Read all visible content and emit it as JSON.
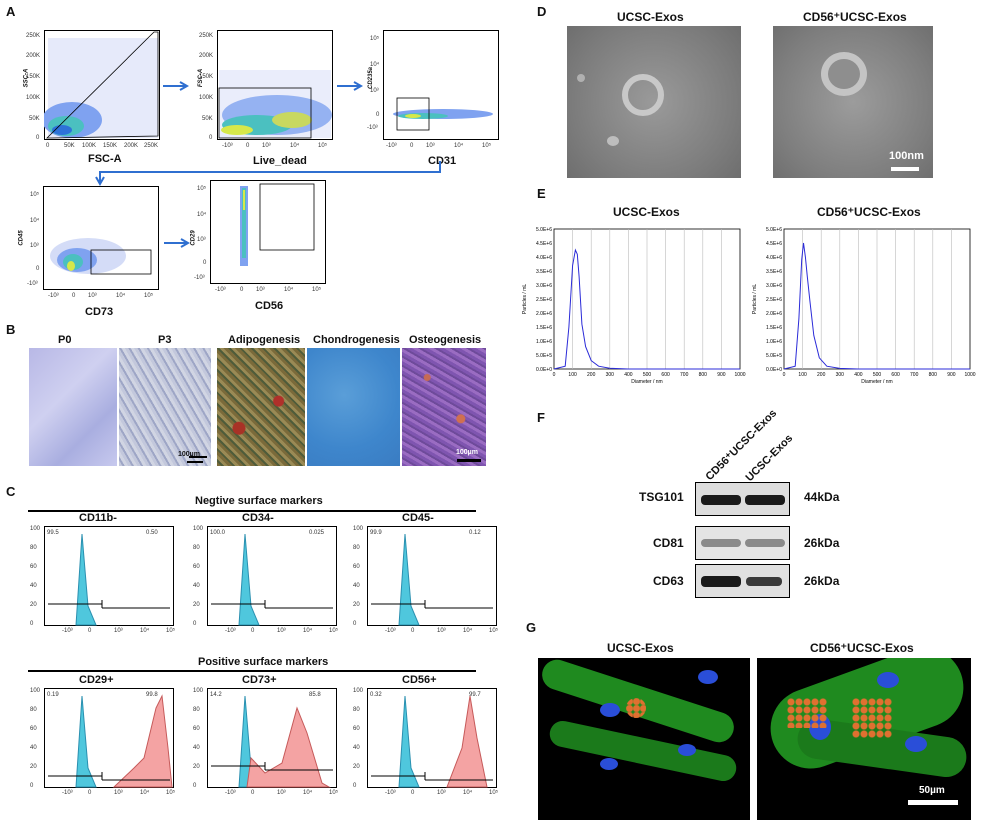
{
  "panels": {
    "A": "A",
    "B": "B",
    "C": "C",
    "D": "D",
    "E": "E",
    "F": "F",
    "G": "G"
  },
  "A": {
    "plots": [
      {
        "xlabel": "FSC-A",
        "ylabel": "SSC-A",
        "xticks": [
          "0",
          "50K",
          "100K",
          "150K",
          "200K",
          "250K"
        ],
        "yticks": [
          "250K",
          "200K",
          "150K",
          "100K",
          "50K",
          "0"
        ]
      },
      {
        "xlabel": "Live_dead",
        "ylabel": "FSC-A",
        "xticks": [
          "-10³",
          "0",
          "10³",
          "10⁴",
          "10⁵"
        ],
        "yticks": [
          "250K",
          "200K",
          "150K",
          "100K",
          "50K",
          "0"
        ]
      },
      {
        "xlabel": "CD31",
        "ylabel": "CD235a",
        "xticks": [
          "-10³",
          "0",
          "10³",
          "10⁴",
          "10⁵"
        ],
        "yticks": [
          "10⁵",
          "10⁴",
          "10³",
          "0",
          "-10³"
        ]
      },
      {
        "xlabel": "CD73",
        "ylabel": "CD45",
        "xticks": [
          "-10³",
          "0",
          "10³",
          "10⁴",
          "10⁵"
        ],
        "yticks": [
          "10⁵",
          "10⁴",
          "10³",
          "0",
          "-10³"
        ]
      },
      {
        "xlabel": "CD56",
        "ylabel": "CD29",
        "xticks": [
          "-10³",
          "0",
          "10³",
          "10⁴",
          "10⁵"
        ],
        "yticks": [
          "10⁵",
          "10⁴",
          "10³",
          "0",
          "-10³"
        ]
      }
    ]
  },
  "B": {
    "images": [
      "P0",
      "P3",
      "Adipogenesis",
      "Chondrogenesis",
      "Osteogenesis"
    ],
    "scale1": "100µm",
    "scale2": "100µm"
  },
  "C": {
    "negative_title": "Negtive surface markers",
    "positive_title": "Positive surface markers",
    "yticks": [
      "100",
      "80",
      "60",
      "40",
      "20",
      "0"
    ],
    "xticks": [
      "-10³",
      "0",
      "10³",
      "10⁴",
      "10⁵"
    ],
    "hists": [
      {
        "name": "CD11b-",
        "left": "99.5",
        "right": "0.50"
      },
      {
        "name": "CD34-",
        "left": "100.0",
        "right": "0.025"
      },
      {
        "name": "CD45-",
        "left": "99.9",
        "right": "0.12"
      },
      {
        "name": "CD29+",
        "left": "0.19",
        "right": "99.8"
      },
      {
        "name": "CD73+",
        "left": "14.2",
        "right": "85.8"
      },
      {
        "name": "CD56+",
        "left": "0.32",
        "right": "99.7"
      }
    ]
  },
  "D": {
    "left": "UCSC-Exos",
    "right": "CD56⁺UCSC-Exos",
    "scale": "100nm"
  },
  "E": {
    "left_title": "UCSC-Exos",
    "right_title": "CD56⁺UCSC-Exos",
    "ylabel": "Particles / mL",
    "xlabel": "Diameter / nm",
    "yticks": [
      "5.0E+6",
      "4.5E+6",
      "4.0E+6",
      "3.5E+6",
      "3.0E+6",
      "2.5E+6",
      "2.0E+6",
      "1.5E+6",
      "1.0E+6",
      "5.0E+5",
      "0.0E+0"
    ],
    "xticks": [
      "0",
      "100",
      "200",
      "300",
      "400",
      "500",
      "600",
      "700",
      "800",
      "900",
      "1000"
    ]
  },
  "chart_data": [
    {
      "type": "line",
      "title": "UCSC-Exos",
      "xlabel": "Diameter / nm",
      "ylabel": "Particles / mL",
      "xlim": [
        0,
        1000
      ],
      "ylim": [
        0,
        5000000
      ],
      "x": [
        0,
        60,
        80,
        100,
        115,
        125,
        135,
        150,
        170,
        200,
        240,
        300,
        400,
        1000
      ],
      "values": [
        0,
        100000,
        1500000,
        3700000,
        4250000,
        4100000,
        3300000,
        1600000,
        800000,
        300000,
        100000,
        30000,
        0,
        0
      ]
    },
    {
      "type": "line",
      "title": "CD56⁺UCSC-Exos",
      "xlabel": "Diameter / nm",
      "ylabel": "Particles / mL",
      "xlim": [
        0,
        1000
      ],
      "ylim": [
        0,
        5000000
      ],
      "x": [
        0,
        60,
        80,
        95,
        105,
        115,
        125,
        140,
        160,
        190,
        230,
        300,
        400,
        1000
      ],
      "values": [
        0,
        100000,
        1800000,
        3900000,
        4500000,
        4000000,
        3300000,
        2400000,
        1200000,
        400000,
        100000,
        20000,
        0,
        0
      ]
    }
  ],
  "F": {
    "samples": [
      "CD56⁺UCSC-Exos",
      "UCSC-Exos"
    ],
    "bands": [
      {
        "name": "TSG101",
        "size": "44kDa"
      },
      {
        "name": "CD81",
        "size": "26kDa"
      },
      {
        "name": "CD63",
        "size": "26kDa"
      }
    ]
  },
  "G": {
    "left": "UCSC-Exos",
    "right": "CD56⁺UCSC-Exos",
    "scale": "50µm"
  }
}
